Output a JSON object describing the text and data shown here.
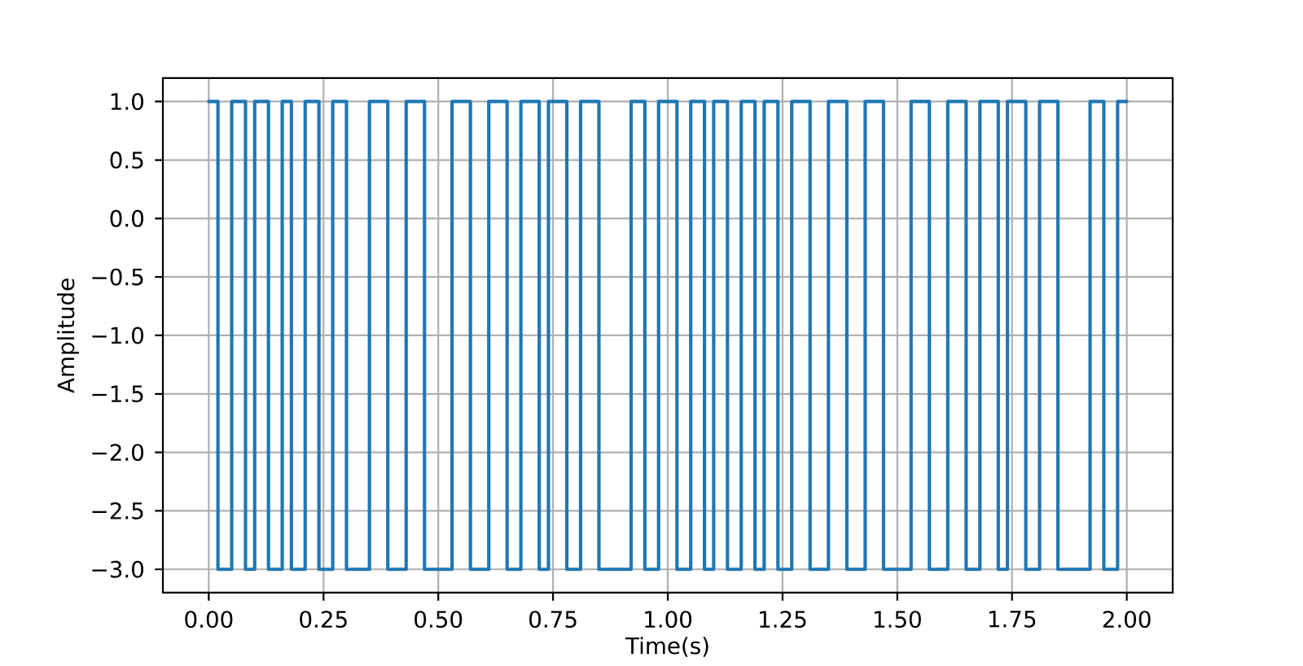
{
  "chart_data": {
    "type": "step",
    "xlabel": "Time(s)",
    "ylabel": "Amplitude",
    "color": "#1f77b4",
    "x": [
      0,
      0.02,
      0.05,
      0.08,
      0.1,
      0.13,
      0.16,
      0.18,
      0.21,
      0.24,
      0.27,
      0.3,
      0.35,
      0.39,
      0.43,
      0.47,
      0.53,
      0.57,
      0.61,
      0.65,
      0.68,
      0.72,
      0.74,
      0.78,
      0.81,
      0.85,
      0.92,
      0.95,
      0.98,
      1.02,
      1.05,
      1.08,
      1.1,
      1.13,
      1.16,
      1.19,
      1.21,
      1.24,
      1.27,
      1.31,
      1.35,
      1.39,
      1.43,
      1.47,
      1.53,
      1.57,
      1.61,
      1.65,
      1.68,
      1.72,
      1.74,
      1.78,
      1.81,
      1.85,
      1.92,
      1.95,
      1.98,
      2.0
    ],
    "values": [
      1,
      -3,
      1,
      -3,
      1,
      -3,
      1,
      -3,
      1,
      -3,
      1,
      -3,
      1,
      -3,
      1,
      -3,
      1,
      -3,
      1,
      -3,
      1,
      -3,
      1,
      -3,
      1,
      -3,
      1,
      -3,
      1,
      -3,
      1,
      -3,
      1,
      -3,
      1,
      -3,
      1,
      -3,
      1,
      -3,
      1,
      -3,
      1,
      -3,
      1,
      -3,
      1,
      -3,
      1,
      -3,
      1,
      -3,
      1,
      -3,
      1,
      -3,
      1,
      1
    ],
    "xlim": [
      -0.1,
      2.1
    ],
    "ylim": [
      -3.2,
      1.2
    ],
    "xticks": [
      {
        "value": 0,
        "label": "0.00"
      },
      {
        "value": 0.25,
        "label": "0.25"
      },
      {
        "value": 0.5,
        "label": "0.50"
      },
      {
        "value": 0.75,
        "label": "0.75"
      },
      {
        "value": 1,
        "label": "1.00"
      },
      {
        "value": 1.25,
        "label": "1.25"
      },
      {
        "value": 1.5,
        "label": "1.50"
      },
      {
        "value": 1.75,
        "label": "1.75"
      },
      {
        "value": 2,
        "label": "2.00"
      }
    ],
    "yticks": [
      {
        "value": -3,
        "label": "−3.0"
      },
      {
        "value": -2.5,
        "label": "−2.5"
      },
      {
        "value": -2,
        "label": "−2.0"
      },
      {
        "value": -1.5,
        "label": "−1.5"
      },
      {
        "value": -1,
        "label": "−1.0"
      },
      {
        "value": -0.5,
        "label": "−0.5"
      },
      {
        "value": 0,
        "label": "0.0"
      },
      {
        "value": 0.5,
        "label": "0.5"
      },
      {
        "value": 1,
        "label": "1.0"
      }
    ],
    "grid": true
  }
}
